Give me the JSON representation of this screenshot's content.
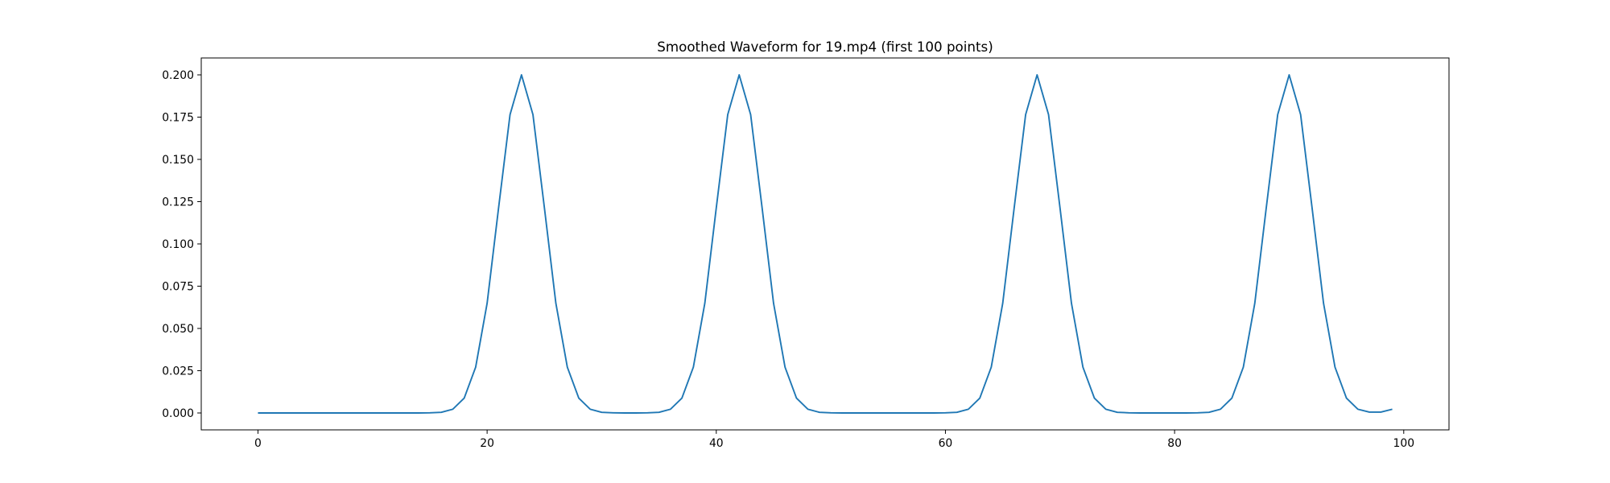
{
  "chart_data": {
    "type": "line",
    "title": "Smoothed Waveform for 19.mp4 (first 100 points)",
    "xlabel": "",
    "ylabel": "",
    "xlim": [
      -4.95,
      103.95
    ],
    "ylim": [
      -0.01,
      0.21
    ],
    "grid": false,
    "line_color": "#1f77b4",
    "xticks": [
      0,
      20,
      40,
      60,
      80,
      100
    ],
    "xtick_labels": [
      "0",
      "20",
      "40",
      "60",
      "80",
      "100"
    ],
    "yticks": [
      0,
      0.025,
      0.05,
      0.075,
      0.1,
      0.125,
      0.15,
      0.175,
      0.2
    ],
    "ytick_labels": [
      "0.000",
      "0.025",
      "0.050",
      "0.075",
      "0.100",
      "0.125",
      "0.150",
      "0.175",
      "0.200"
    ],
    "series": [
      {
        "name": "smoothed waveform",
        "values": [
          0,
          0,
          0,
          0,
          0,
          0,
          0,
          0,
          0,
          0,
          0,
          0,
          0,
          0,
          0,
          0.0001,
          0.0004,
          0.0022,
          0.0088,
          0.0271,
          0.0649,
          0.1213,
          0.1765,
          0.2,
          0.1765,
          0.1213,
          0.0649,
          0.0271,
          0.0088,
          0.0022,
          0.0004,
          0.0001,
          0,
          0,
          0.0001,
          0.0004,
          0.0022,
          0.0088,
          0.0271,
          0.0649,
          0.1213,
          0.1765,
          0.2,
          0.1765,
          0.1213,
          0.0649,
          0.0271,
          0.0088,
          0.0022,
          0.0004,
          0.0001,
          0,
          0,
          0,
          0,
          0,
          0,
          0,
          0,
          0,
          0.0001,
          0.0004,
          0.0022,
          0.0088,
          0.0271,
          0.0649,
          0.1213,
          0.1765,
          0.2,
          0.1765,
          0.1213,
          0.0649,
          0.0271,
          0.0088,
          0.0022,
          0.0004,
          0.0001,
          0,
          0,
          0,
          0,
          0,
          0.0001,
          0.0004,
          0.0022,
          0.0088,
          0.0271,
          0.0649,
          0.1213,
          0.1765,
          0.2,
          0.1765,
          0.1213,
          0.0649,
          0.0271,
          0.0088,
          0.0022,
          0.0005,
          0.0005,
          0.0022
        ]
      }
    ]
  }
}
